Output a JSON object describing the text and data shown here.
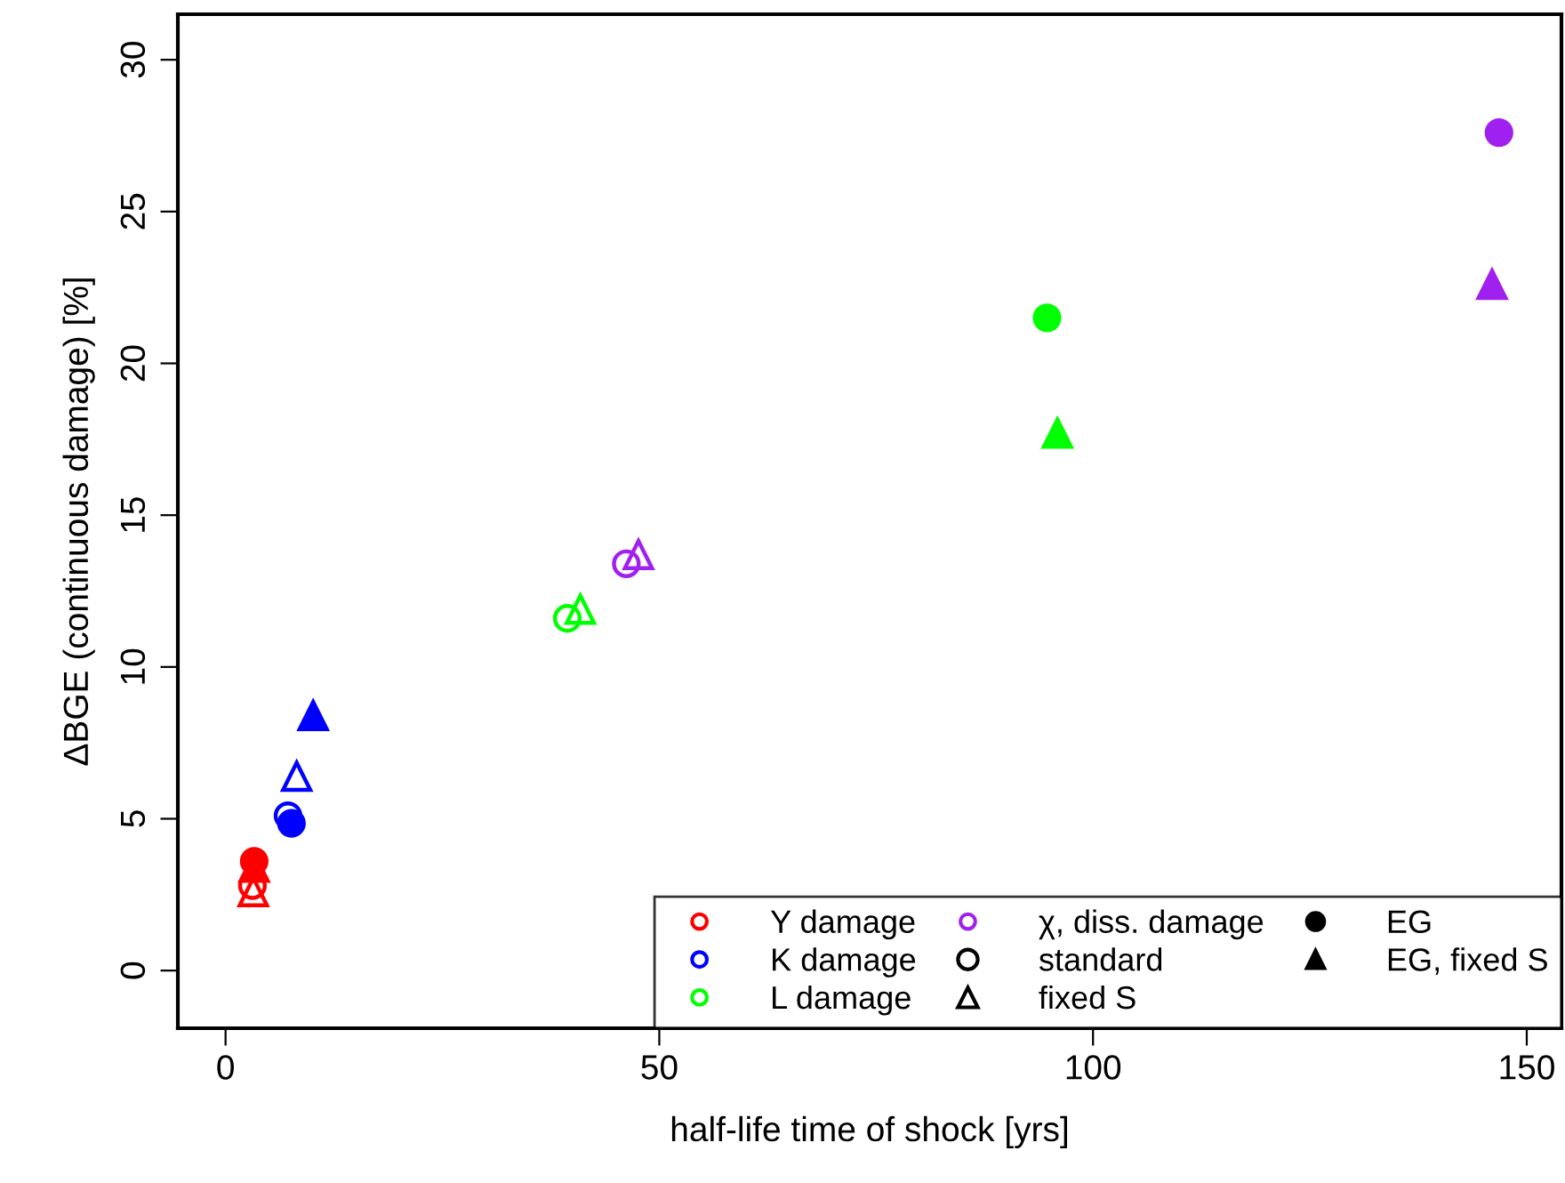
{
  "chart_data": {
    "type": "scatter",
    "xlabel": "half-life time of shock [yrs]",
    "ylabel": "ΔBGE (continuous damage) [%]",
    "xlim": [
      -5.5,
      154
    ],
    "ylim": [
      -1.9,
      31.5
    ],
    "xticks": [
      0,
      50,
      100,
      150
    ],
    "yticks": [
      0,
      5,
      10,
      15,
      20,
      25,
      30
    ],
    "grid": false,
    "legend": "bottom right",
    "series": [
      {
        "name": "Y damage",
        "color": "#ff0000",
        "x": [
          3.1,
          3.2,
          3.3,
          3.3
        ],
        "values": [
          2.8,
          2.6,
          3.6,
          3.4
        ],
        "marker": [
          "circle",
          "triangle",
          "circle",
          "triangle"
        ],
        "colors": [
          null,
          null,
          "#ff0000",
          "#ff0000"
        ]
      },
      {
        "name": "K damage",
        "color": "#0000ff",
        "x": [
          7.2,
          8.2,
          7.6,
          10.1
        ],
        "values": [
          5.1,
          6.4,
          4.85,
          8.4
        ],
        "marker": [
          "circle",
          "triangle",
          "circle",
          "triangle"
        ],
        "colors": [
          null,
          null,
          "#0000ff",
          "#0000ff"
        ]
      },
      {
        "name": "L damage",
        "color": "#00ff00",
        "x": [
          39.4,
          40.9,
          94.7,
          95.9
        ],
        "values": [
          11.6,
          11.9,
          21.5,
          17.7
        ],
        "marker": [
          "circle",
          "triangle",
          "circle",
          "triangle"
        ],
        "colors": [
          null,
          null,
          "#00ff00",
          "#00ff00"
        ]
      },
      {
        "name": "χ, diss. damage",
        "color": "#a020f0",
        "x": [
          46.2,
          47.6,
          146.8,
          146.0
        ],
        "values": [
          13.4,
          13.7,
          27.6,
          22.6
        ],
        "marker": [
          "circle",
          "triangle",
          "circle",
          "triangle"
        ],
        "colors": [
          null,
          null,
          "#a020f0",
          "#a020f0"
        ]
      },
      {
        "name": "standard",
        "color": "#000000",
        "x": [
          null
        ],
        "values": [
          null
        ],
        "marker": "circle",
        "colors": [
          null
        ]
      },
      {
        "name": "fixed S",
        "color": "#000000",
        "x": [
          null
        ],
        "values": [
          null
        ],
        "marker": "triangle",
        "colors": [
          null
        ]
      },
      {
        "name": "EG",
        "color": "#000000",
        "x": [
          null
        ],
        "values": [
          null
        ],
        "marker": "circle",
        "colors": [
          "#000000"
        ]
      },
      {
        "name": "EG, fixed S",
        "color": "#000000",
        "x": [
          null
        ],
        "values": [
          null
        ],
        "marker": "triangle",
        "colors": [
          "#000000"
        ]
      }
    ]
  }
}
